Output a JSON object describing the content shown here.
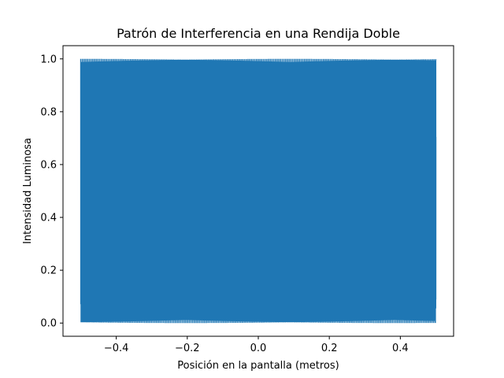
{
  "chart_data": {
    "type": "line",
    "title": "Patrón de Interferencia en una Rendija Doble",
    "xlabel": "Posición en la pantalla (metros)",
    "ylabel": "Intensidad Luminosa",
    "xlim": [
      -0.55,
      0.55
    ],
    "ylim": [
      -0.05,
      1.05
    ],
    "x_ticks": [
      -0.4,
      -0.2,
      0.0,
      0.2,
      0.4
    ],
    "x_tick_labels": [
      "−0.4",
      "−0.2",
      "0.0",
      "0.2",
      "0.4"
    ],
    "y_ticks": [
      0.0,
      0.2,
      0.4,
      0.6,
      0.8,
      1.0
    ],
    "y_tick_labels": [
      "0.0",
      "0.2",
      "0.4",
      "0.6",
      "0.8",
      "1.0"
    ],
    "grid": false,
    "series": [
      {
        "color": "#1f77b4",
        "x_range": [
          -0.5,
          0.5
        ],
        "y_range": [
          0.0,
          1.0
        ],
        "description_values": "rapidly oscillating cos^2 intensity between 0 and 1 across the whole range"
      }
    ]
  }
}
